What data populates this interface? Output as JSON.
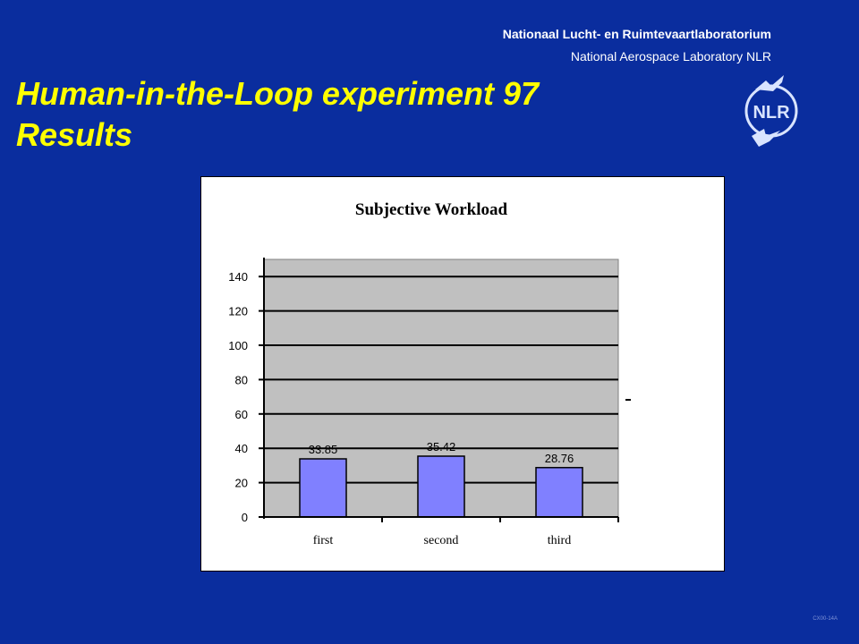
{
  "header": {
    "org_dutch": "Nationaal Lucht- en Ruimtevaartlaboratorium",
    "org_english": "National Aerospace Laboratory NLR",
    "logo_text": "NLR",
    "logo_icon": "nlr-logo"
  },
  "slide": {
    "title_line1": "Human-in-the-Loop experiment 97",
    "title_line2": "Results",
    "footer_code": "CX00-14A"
  },
  "colors": {
    "background": "#0a2d9e",
    "title": "#ffff00",
    "plot_area": "#c0c0c0",
    "bar": "#8080ff"
  },
  "chart_data": {
    "type": "bar",
    "title": "Subjective Workload",
    "categories": [
      "first",
      "second",
      "third"
    ],
    "values": [
      33.85,
      35.42,
      28.76
    ],
    "value_labels": [
      "33.85",
      "35.42",
      "28.76"
    ],
    "xlabel": "",
    "ylabel": "",
    "ylim": [
      0,
      150
    ],
    "yticks": [
      0,
      20,
      40,
      60,
      80,
      100,
      120,
      140
    ],
    "grid": true,
    "legend": "none"
  }
}
